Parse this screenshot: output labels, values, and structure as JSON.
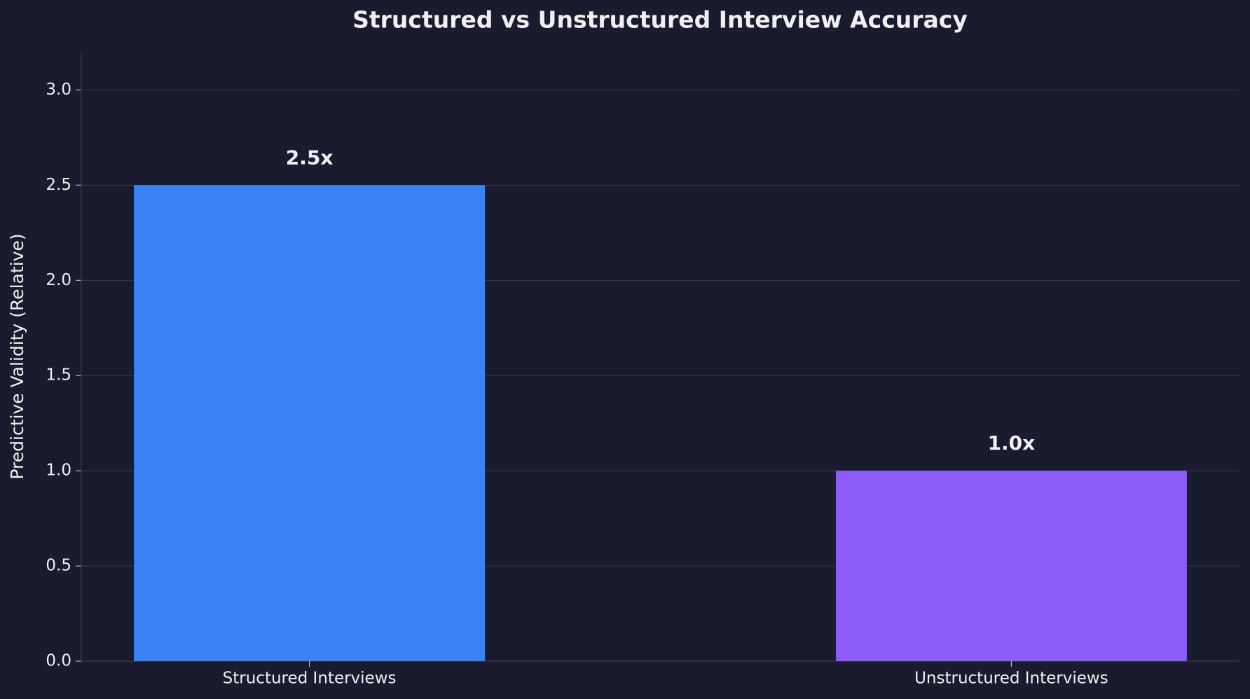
{
  "chart_data": {
    "type": "bar",
    "title": "Structured vs Unstructured Interview Accuracy",
    "ylabel": "Predictive Validity (Relative)",
    "categories": [
      "Structured Interviews",
      "Unstructured Interviews"
    ],
    "values": [
      2.5,
      1.0
    ],
    "value_labels": [
      "2.5x",
      "1.0x"
    ],
    "colors": [
      "#3b82f6",
      "#8b5cf6"
    ],
    "ylim": [
      0,
      3.2
    ],
    "yticks": [
      {
        "value": 0,
        "label": "0.0"
      },
      {
        "value": 0.5,
        "label": "0.5"
      },
      {
        "value": 1,
        "label": "1.0"
      },
      {
        "value": 1.5,
        "label": "1.5"
      },
      {
        "value": 2,
        "label": "2.0"
      },
      {
        "value": 2.5,
        "label": "2.5"
      },
      {
        "value": 3,
        "label": "3.0"
      }
    ],
    "grid": true
  }
}
